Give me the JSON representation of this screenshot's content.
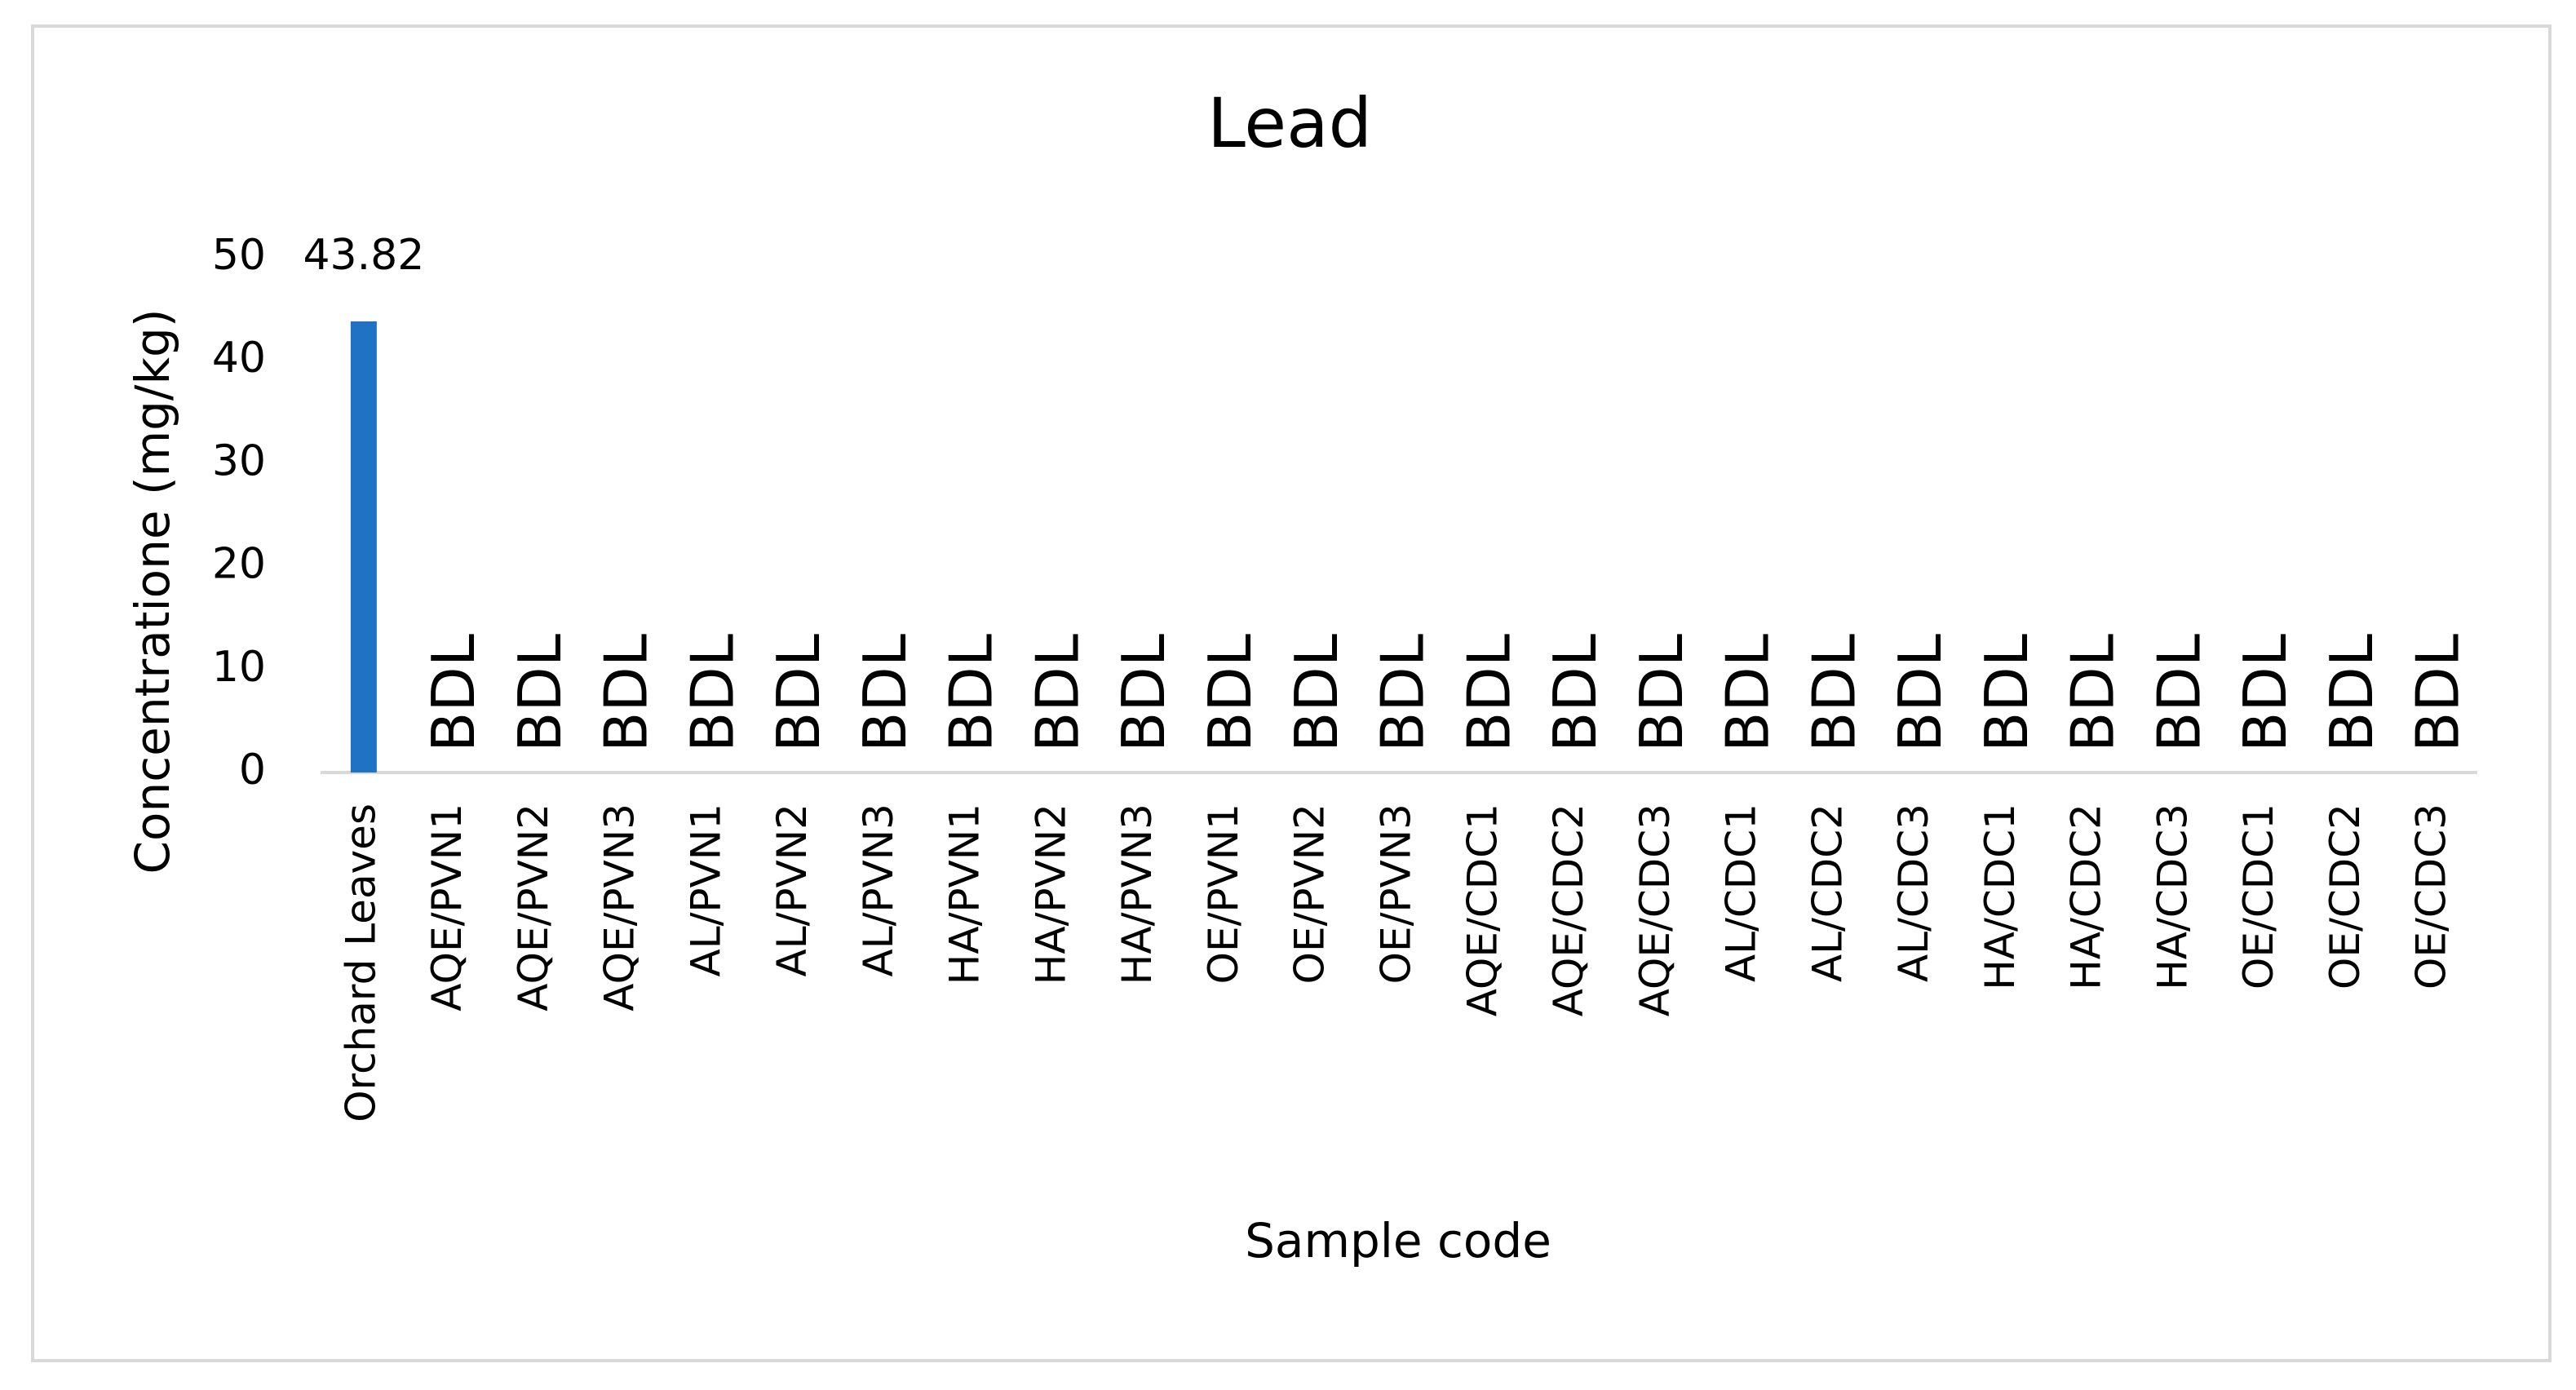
{
  "chart_data": {
    "type": "bar",
    "title": "Lead",
    "x_label": "Sample code",
    "y_label": "Concentratione (mg/kg)",
    "categories": [
      "Orchard Leaves",
      "AQE/PVN1",
      "AQE/PVN2",
      "AQE/PVN3",
      "AL/PVN1",
      "AL/PVN2",
      "AL/PVN3",
      "HA/PVN1",
      "HA/PVN2",
      "HA/PVN3",
      "OE/PVN1",
      "OE/PVN2",
      "OE/PVN3",
      "AQE/CDC1",
      "AQE/CDC2",
      "AQE/CDC3",
      "AL/CDC1",
      "AL/CDC2",
      "AL/CDC3",
      "HA/CDC1",
      "HA/CDC2",
      "HA/CDC3",
      "OE/CDC1",
      "OE/CDC2",
      "OE/CDC3"
    ],
    "values": [
      43.82,
      null,
      null,
      null,
      null,
      null,
      null,
      null,
      null,
      null,
      null,
      null,
      null,
      null,
      null,
      null,
      null,
      null,
      null,
      null,
      null,
      null,
      null,
      null,
      null
    ],
    "value_labels": [
      "43.82",
      "BDL",
      "BDL",
      "BDL",
      "BDL",
      "BDL",
      "BDL",
      "BDL",
      "BDL",
      "BDL",
      "BDL",
      "BDL",
      "BDL",
      "BDL",
      "BDL",
      "BDL",
      "BDL",
      "BDL",
      "BDL",
      "BDL",
      "BDL",
      "BDL",
      "BDL",
      "BDL",
      "BDL"
    ],
    "color": "#1f72c4",
    "ylim": [
      0,
      50
    ],
    "yticks": [
      0,
      10,
      20,
      30,
      40,
      50
    ],
    "grid": false
  }
}
